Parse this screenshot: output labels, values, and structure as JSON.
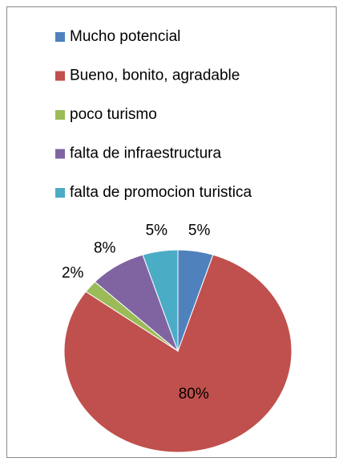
{
  "chart_data": {
    "type": "pie",
    "categories": [
      "Mucho potencial",
      "Bueno, bonito, agradable",
      "poco turismo",
      "falta de infraestructura",
      "falta de promocion turistica"
    ],
    "values": [
      5,
      80,
      2,
      8,
      5
    ],
    "value_labels": [
      "5%",
      "80%",
      "2%",
      "8%",
      "5%"
    ],
    "colors": [
      "#4f81bd",
      "#c0504d",
      "#9bbb59",
      "#8064a2",
      "#4bacc6"
    ],
    "legend": "top"
  }
}
